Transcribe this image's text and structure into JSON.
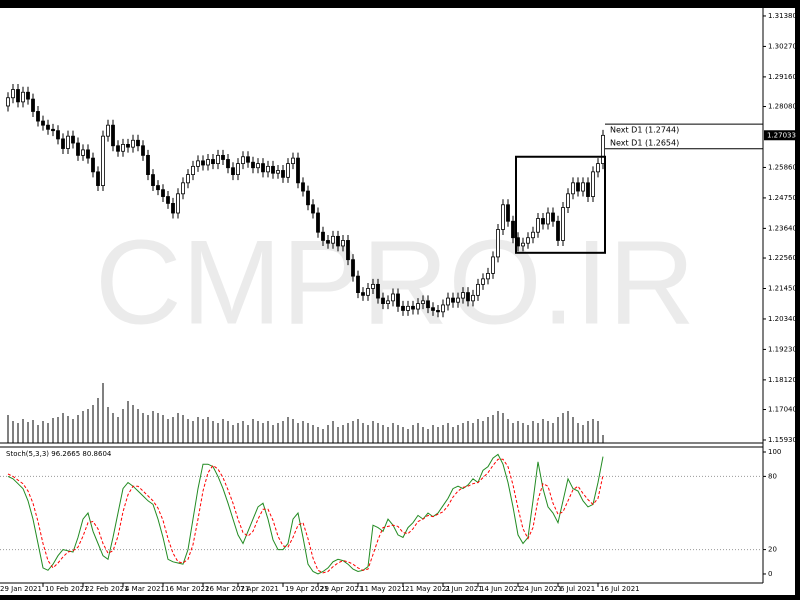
{
  "chart_data": {
    "type": "candlestick",
    "watermark": "CMPRO.IR",
    "xlim": [
      -1.6,
      150.4
    ],
    "xticks": [
      {
        "value": -2,
        "label": "29 Jan 2021"
      },
      {
        "value": 7,
        "label": "10 Feb 2021"
      },
      {
        "value": 15,
        "label": "22 Feb 2021"
      },
      {
        "value": 23,
        "label": "4 Mar 2021"
      },
      {
        "value": 31,
        "label": "16 Mar 2021"
      },
      {
        "value": 39,
        "label": "26 Mar 2021"
      },
      {
        "value": 46,
        "label": "7 Apr 2021"
      },
      {
        "value": 55,
        "label": "19 Apr 2021"
      },
      {
        "value": 62,
        "label": "29 Apr 2021"
      },
      {
        "value": 70,
        "label": "11 May 2021"
      },
      {
        "value": 79,
        "label": "21 May 2021"
      },
      {
        "value": 87,
        "label": "2 Jun 2021"
      },
      {
        "value": 94,
        "label": "14 Jun 2021"
      },
      {
        "value": 102,
        "label": "24 Jun 2021"
      },
      {
        "value": 110,
        "label": "6 Jul 2021"
      },
      {
        "value": 118,
        "label": "16 Jul 2021"
      }
    ],
    "ylim": [
      1.1582,
      1.3167
    ],
    "yticks": [
      {
        "value": 1.3138,
        "label": "1.31380"
      },
      {
        "value": 1.3027,
        "label": "1.30270"
      },
      {
        "value": 1.2916,
        "label": "1.29160"
      },
      {
        "value": 1.2808,
        "label": "1.28080"
      },
      {
        "value": 1.2586,
        "label": "1.25860"
      },
      {
        "value": 1.2475,
        "label": "1.24750"
      },
      {
        "value": 1.2364,
        "label": "1.23640"
      },
      {
        "value": 1.2256,
        "label": "1.22560"
      },
      {
        "value": 1.2145,
        "label": "1.21450"
      },
      {
        "value": 1.2034,
        "label": "1.20340"
      },
      {
        "value": 1.1923,
        "label": "1.19230"
      },
      {
        "value": 1.1812,
        "label": "1.18120"
      },
      {
        "value": 1.1704,
        "label": "1.17040"
      },
      {
        "value": 1.1593,
        "label": "1.15930"
      }
    ],
    "last_price": 1.27033,
    "up_color": "#ffffff",
    "down_color": "#000000",
    "open": [
      1.281,
      1.284,
      1.287,
      1.2825,
      1.286,
      1.2835,
      1.279,
      1.2755,
      1.274,
      1.2725,
      1.272,
      1.269,
      1.2655,
      1.27,
      1.2675,
      1.263,
      1.265,
      1.262,
      1.257,
      1.252,
      1.27,
      1.274,
      1.2665,
      1.2645,
      1.267,
      1.266,
      1.2685,
      1.2665,
      1.263,
      1.256,
      1.252,
      1.2505,
      1.248,
      1.2455,
      1.242,
      1.249,
      1.253,
      1.256,
      1.259,
      1.261,
      1.2595,
      1.2615,
      1.26,
      1.263,
      1.2615,
      1.2585,
      1.256,
      1.26,
      1.2625,
      1.2605,
      1.2585,
      1.26,
      1.257,
      1.259,
      1.2565,
      1.2575,
      1.255,
      1.26,
      1.262,
      1.253,
      1.25,
      1.245,
      1.242,
      1.235,
      1.232,
      1.231,
      1.2335,
      1.23,
      1.232,
      1.225,
      1.219,
      1.213,
      1.212,
      1.2145,
      1.216,
      1.211,
      1.209,
      1.21,
      1.2125,
      1.208,
      1.2065,
      1.208,
      1.207,
      1.209,
      1.21,
      1.2075,
      1.2065,
      1.206,
      1.2085,
      1.211,
      1.2095,
      1.211,
      1.213,
      1.21,
      1.212,
      1.216,
      1.218,
      1.22,
      1.226,
      1.236,
      1.245,
      1.239,
      1.233,
      1.23,
      1.231,
      1.233,
      1.235,
      1.24,
      1.238,
      1.242,
      1.239,
      1.232,
      1.244,
      1.249,
      1.253,
      1.25,
      1.253,
      1.248,
      1.257,
      1.26
    ],
    "high": [
      1.286,
      1.289,
      1.289,
      1.288,
      1.288,
      1.2855,
      1.281,
      1.2775,
      1.276,
      1.2745,
      1.274,
      1.271,
      1.272,
      1.272,
      1.2695,
      1.267,
      1.267,
      1.264,
      1.259,
      1.272,
      1.276,
      1.276,
      1.2685,
      1.269,
      1.269,
      1.2705,
      1.2705,
      1.2685,
      1.265,
      1.258,
      1.254,
      1.2525,
      1.25,
      1.2475,
      1.251,
      1.255,
      1.258,
      1.261,
      1.263,
      1.263,
      1.2635,
      1.2635,
      1.265,
      1.265,
      1.2635,
      1.2605,
      1.262,
      1.2645,
      1.2645,
      1.2625,
      1.262,
      1.262,
      1.261,
      1.261,
      1.2595,
      1.2595,
      1.262,
      1.264,
      1.264,
      1.255,
      1.252,
      1.247,
      1.244,
      1.237,
      1.234,
      1.2355,
      1.2355,
      1.234,
      1.234,
      1.227,
      1.221,
      1.215,
      1.2165,
      1.218,
      1.218,
      1.213,
      1.212,
      1.2145,
      1.2145,
      1.21,
      1.21,
      1.21,
      1.211,
      1.212,
      1.212,
      1.2095,
      1.2085,
      1.2105,
      1.213,
      1.213,
      1.213,
      1.215,
      1.215,
      1.214,
      1.218,
      1.22,
      1.222,
      1.228,
      1.238,
      1.247,
      1.247,
      1.241,
      1.235,
      1.233,
      1.235,
      1.237,
      1.242,
      1.242,
      1.244,
      1.244,
      1.241,
      1.246,
      1.251,
      1.255,
      1.255,
      1.255,
      1.255,
      1.259,
      1.262,
      1.2723
    ],
    "low": [
      1.279,
      1.282,
      1.2805,
      1.2805,
      1.2815,
      1.277,
      1.2735,
      1.272,
      1.2705,
      1.27,
      1.267,
      1.2635,
      1.2635,
      1.2655,
      1.261,
      1.261,
      1.26,
      1.255,
      1.25,
      1.25,
      1.268,
      1.2645,
      1.2625,
      1.2625,
      1.264,
      1.264,
      1.2645,
      1.261,
      1.254,
      1.25,
      1.2485,
      1.246,
      1.2435,
      1.24,
      1.24,
      1.247,
      1.251,
      1.254,
      1.257,
      1.2575,
      1.2575,
      1.258,
      1.258,
      1.2595,
      1.2565,
      1.254,
      1.254,
      1.258,
      1.2585,
      1.2565,
      1.2565,
      1.255,
      1.255,
      1.2545,
      1.2545,
      1.253,
      1.253,
      1.258,
      1.251,
      1.248,
      1.243,
      1.24,
      1.233,
      1.23,
      1.229,
      1.229,
      1.228,
      1.228,
      1.223,
      1.217,
      1.211,
      1.21,
      1.21,
      1.2125,
      1.209,
      1.207,
      1.207,
      1.208,
      1.206,
      1.2045,
      1.2045,
      1.205,
      1.205,
      1.207,
      1.2055,
      1.2045,
      1.204,
      1.204,
      1.2065,
      1.2075,
      1.2075,
      1.209,
      1.208,
      1.208,
      1.21,
      1.214,
      1.216,
      1.218,
      1.224,
      1.234,
      1.237,
      1.231,
      1.228,
      1.228,
      1.229,
      1.231,
      1.233,
      1.236,
      1.236,
      1.237,
      1.23,
      1.23,
      1.242,
      1.247,
      1.248,
      1.248,
      1.246,
      1.246,
      1.255,
      1.258
    ],
    "close": [
      1.284,
      1.287,
      1.2825,
      1.286,
      1.2835,
      1.279,
      1.2755,
      1.274,
      1.2725,
      1.272,
      1.269,
      1.2655,
      1.27,
      1.2675,
      1.263,
      1.265,
      1.262,
      1.257,
      1.252,
      1.27,
      1.274,
      1.2665,
      1.2645,
      1.267,
      1.266,
      1.2685,
      1.2665,
      1.263,
      1.256,
      1.252,
      1.2505,
      1.248,
      1.2455,
      1.242,
      1.249,
      1.253,
      1.256,
      1.259,
      1.261,
      1.2595,
      1.2615,
      1.26,
      1.263,
      1.2615,
      1.2585,
      1.256,
      1.26,
      1.2625,
      1.2605,
      1.2585,
      1.26,
      1.257,
      1.259,
      1.2565,
      1.2575,
      1.255,
      1.26,
      1.262,
      1.253,
      1.25,
      1.245,
      1.242,
      1.235,
      1.232,
      1.231,
      1.2335,
      1.23,
      1.232,
      1.225,
      1.219,
      1.213,
      1.212,
      1.2145,
      1.216,
      1.211,
      1.209,
      1.21,
      1.2125,
      1.208,
      1.2065,
      1.208,
      1.207,
      1.209,
      1.21,
      1.2075,
      1.2065,
      1.206,
      1.2085,
      1.211,
      1.2095,
      1.211,
      1.213,
      1.21,
      1.212,
      1.216,
      1.218,
      1.22,
      1.226,
      1.236,
      1.245,
      1.239,
      1.233,
      1.23,
      1.231,
      1.233,
      1.235,
      1.24,
      1.238,
      1.242,
      1.239,
      1.232,
      1.244,
      1.249,
      1.253,
      1.25,
      1.253,
      1.248,
      1.257,
      1.26,
      1.2703
    ],
    "volume": [
      28,
      22,
      20,
      24,
      21,
      23,
      18,
      22,
      20,
      25,
      26,
      30,
      27,
      24,
      28,
      32,
      34,
      38,
      45,
      60,
      36,
      30,
      26,
      34,
      42,
      38,
      34,
      30,
      28,
      32,
      30,
      28,
      24,
      26,
      30,
      28,
      24,
      22,
      26,
      24,
      26,
      22,
      20,
      24,
      22,
      18,
      20,
      22,
      18,
      24,
      22,
      20,
      22,
      18,
      20,
      22,
      26,
      24,
      20,
      22,
      20,
      18,
      16,
      14,
      18,
      22,
      16,
      18,
      20,
      22,
      24,
      20,
      18,
      22,
      20,
      18,
      16,
      20,
      18,
      16,
      14,
      18,
      20,
      16,
      14,
      18,
      16,
      18,
      20,
      16,
      18,
      20,
      22,
      20,
      24,
      22,
      26,
      28,
      32,
      30,
      24,
      20,
      22,
      20,
      18,
      22,
      20,
      24,
      22,
      20,
      26,
      30,
      32,
      26,
      20,
      18,
      22,
      24,
      22,
      8
    ],
    "vlim": [
      0,
      100
    ],
    "volume_color": "#000000",
    "levels": [
      {
        "label": "Next D1 (1.2744)",
        "value": 1.2744
      },
      {
        "label": "Next D1 (1.2654)",
        "value": 1.2654
      }
    ],
    "box": {
      "x": [
        101.6,
        119.4
      ],
      "y": [
        1.2275,
        1.2625
      ]
    },
    "stochastic": {
      "title": "Stoch(5,3,3) 96.2665 80.8604",
      "ylim": [
        -7.4,
        104.1
      ],
      "yticks": [
        0,
        20,
        80,
        100
      ],
      "levels": [
        20,
        80
      ],
      "series": [
        {
          "color": "#228b22",
          "dashed": false,
          "values": [
            80,
            78,
            74,
            70,
            60,
            45,
            25,
            5,
            3,
            8,
            15,
            20,
            19,
            18,
            30,
            45,
            50,
            35,
            25,
            15,
            12,
            30,
            50,
            70,
            75,
            72,
            68,
            64,
            60,
            57,
            45,
            30,
            12,
            10,
            9,
            8,
            20,
            45,
            70,
            90,
            90,
            88,
            80,
            70,
            58,
            45,
            32,
            25,
            35,
            45,
            55,
            58,
            45,
            28,
            20,
            20,
            25,
            45,
            50,
            30,
            8,
            2,
            0,
            2,
            5,
            10,
            12,
            11,
            8,
            4,
            2,
            3,
            6,
            40,
            38,
            35,
            45,
            40,
            32,
            30,
            38,
            42,
            48,
            45,
            50,
            47,
            50,
            56,
            62,
            70,
            72,
            70,
            73,
            78,
            75,
            85,
            88,
            95,
            98,
            90,
            75,
            55,
            32,
            25,
            30,
            60,
            92,
            70,
            55,
            50,
            42,
            60,
            78,
            70,
            68,
            60,
            55,
            57,
            75,
            96.2665
          ]
        },
        {
          "color": "#ff0000",
          "dashed": true,
          "values": [
            82,
            80,
            77,
            74,
            68,
            58,
            43,
            25,
            11,
            5,
            9,
            14,
            18,
            19,
            22,
            31,
            42,
            43,
            37,
            25,
            17,
            19,
            31,
            51,
            65,
            72,
            72,
            68,
            64,
            60,
            54,
            44,
            29,
            17,
            10,
            9,
            12,
            24,
            45,
            68,
            83,
            89,
            86,
            79,
            69,
            58,
            45,
            34,
            31,
            35,
            45,
            53,
            53,
            44,
            31,
            23,
            22,
            30,
            40,
            42,
            29,
            13,
            3,
            1,
            2,
            6,
            9,
            11,
            10,
            8,
            5,
            3,
            4,
            16,
            28,
            38,
            39,
            40,
            39,
            34,
            33,
            37,
            43,
            45,
            48,
            47,
            49,
            51,
            56,
            63,
            68,
            71,
            72,
            74,
            75,
            79,
            83,
            89,
            94,
            94,
            88,
            73,
            54,
            37,
            29,
            38,
            61,
            74,
            72,
            58,
            49,
            51,
            60,
            69,
            72,
            66,
            61,
            57,
            62,
            80.8604
          ]
        }
      ]
    }
  }
}
